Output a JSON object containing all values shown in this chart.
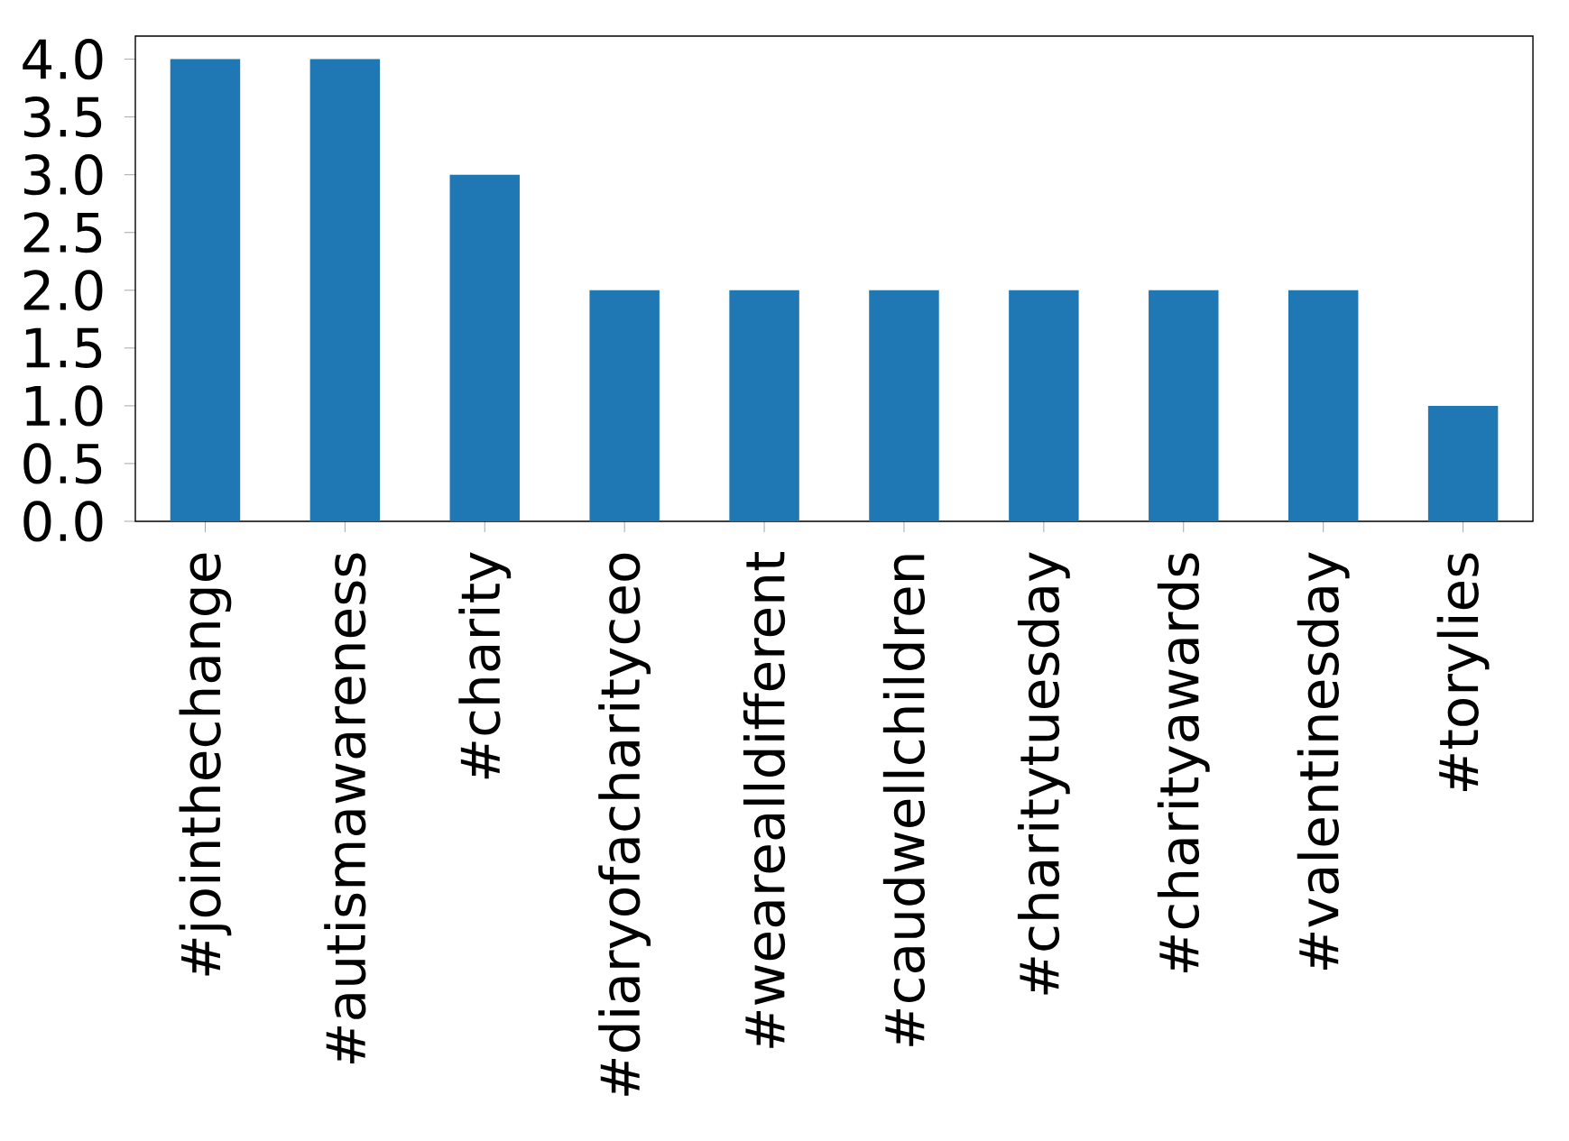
{
  "chart_data": {
    "type": "bar",
    "categories": [
      "#jointhechange",
      "#autismawareness",
      "#charity",
      "#diaryofacharityceo",
      "#wearealldifferent",
      "#caudwellchildren",
      "#charitytuesday",
      "#charityawards",
      "#valentinesday",
      "#torylies"
    ],
    "values": [
      4,
      4,
      3,
      2,
      2,
      2,
      2,
      2,
      2,
      1
    ],
    "color": "#1f77b4",
    "ylim": [
      0,
      4.2
    ],
    "yticks": [
      {
        "value": 0,
        "label": "0.0"
      },
      {
        "value": 0.5,
        "label": "0.5"
      },
      {
        "value": 1,
        "label": "1.0"
      },
      {
        "value": 1.5,
        "label": "1.5"
      },
      {
        "value": 2,
        "label": "2.0"
      },
      {
        "value": 2.5,
        "label": "2.5"
      },
      {
        "value": 3,
        "label": "3.0"
      },
      {
        "value": 3.5,
        "label": "3.5"
      },
      {
        "value": 4,
        "label": "4.0"
      }
    ]
  }
}
